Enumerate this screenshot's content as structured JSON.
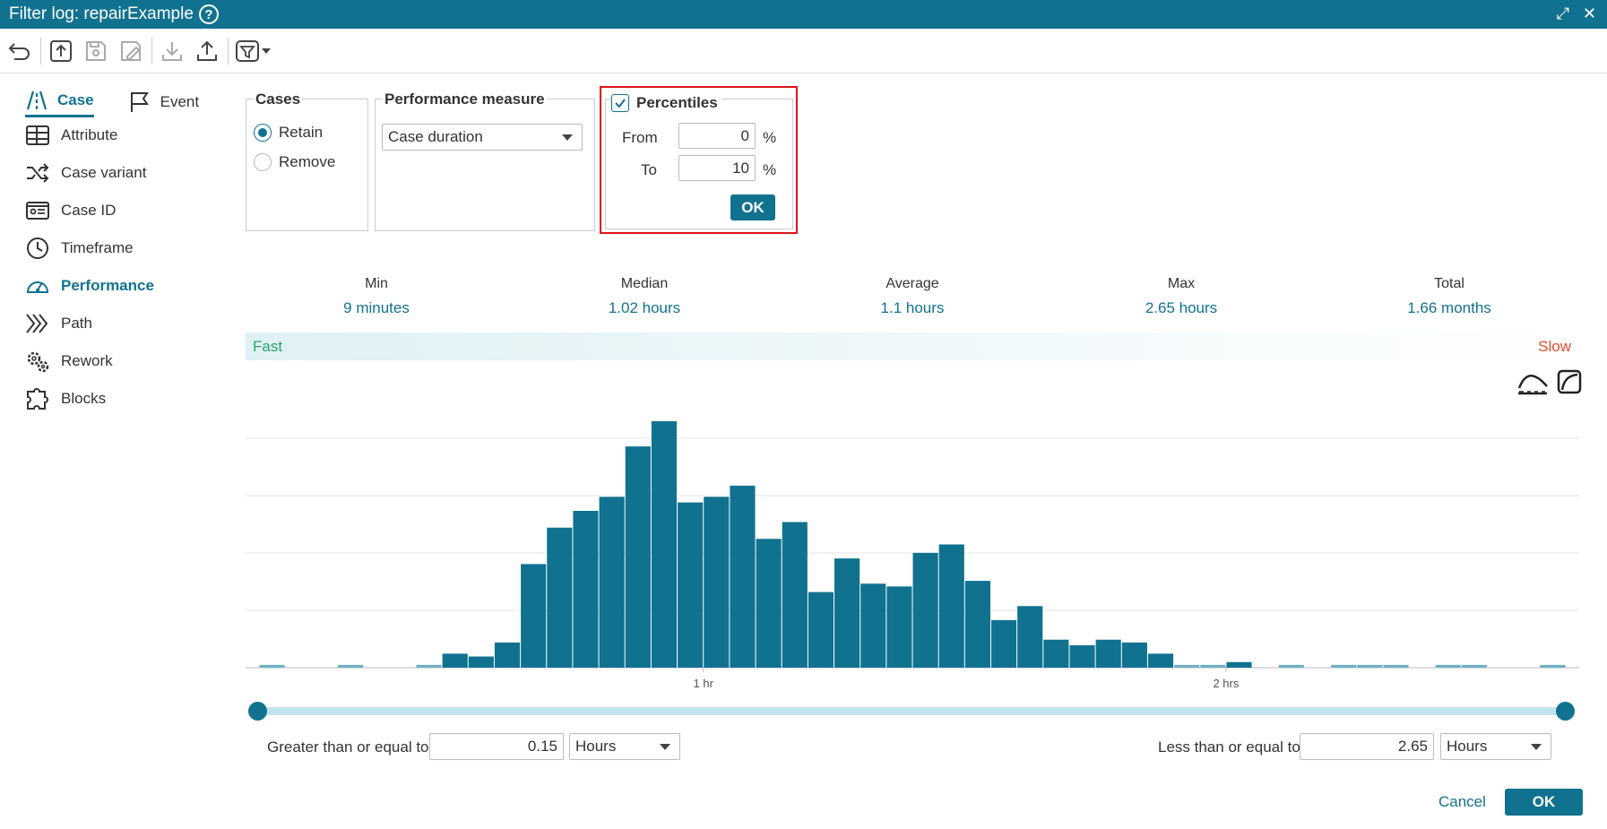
{
  "window": {
    "title": "Filter log: repairExample",
    "help_icon": "question-icon",
    "maximize_icon": "expand-icon",
    "close_icon": "close-icon"
  },
  "toolbar": {
    "icons": [
      "undo-icon",
      "upload-icon",
      "save-icon",
      "save-as-icon",
      "download-icon",
      "export-icon",
      "filter-dropdown-icon"
    ]
  },
  "sidebar": {
    "tabs": [
      {
        "label": "Case",
        "icon": "case-icon",
        "active": true
      },
      {
        "label": "Event",
        "icon": "flag-icon",
        "active": false
      }
    ],
    "items": [
      {
        "label": "Attribute",
        "icon": "table-icon"
      },
      {
        "label": "Case variant",
        "icon": "shuffle-icon"
      },
      {
        "label": "Case ID",
        "icon": "id-card-icon"
      },
      {
        "label": "Timeframe",
        "icon": "clock-icon"
      },
      {
        "label": "Performance",
        "icon": "gauge-icon",
        "active": true
      },
      {
        "label": "Path",
        "icon": "chevrons-icon"
      },
      {
        "label": "Rework",
        "icon": "gears-icon"
      },
      {
        "label": "Blocks",
        "icon": "puzzle-icon"
      }
    ]
  },
  "cases": {
    "legend": "Cases",
    "options": [
      "Retain",
      "Remove"
    ],
    "selected": "Retain"
  },
  "performance_measure": {
    "legend": "Performance measure",
    "value": "Case duration"
  },
  "percentiles": {
    "label": "Percentiles",
    "checked": true,
    "from_label": "From",
    "from_value": "0",
    "to_label": "To",
    "to_value": "10",
    "unit": "%",
    "ok_label": "OK"
  },
  "stats": [
    {
      "label": "Min",
      "value": "9 minutes"
    },
    {
      "label": "Median",
      "value": "1.02 hours"
    },
    {
      "label": "Average",
      "value": "1.1 hours"
    },
    {
      "label": "Max",
      "value": "2.65 hours"
    },
    {
      "label": "Total",
      "value": "1.66 months"
    }
  ],
  "speed": {
    "fast": "Fast",
    "slow": "Slow",
    "fast_color": "#2aa36b",
    "slow_color": "#e24b2b"
  },
  "chart_icons": [
    "curve-area-icon",
    "cumulative-chart-icon"
  ],
  "chart_data": {
    "type": "bar",
    "x_unit": "hours",
    "xlim": [
      0.15,
      2.65
    ],
    "bin_width": 0.05,
    "x": [
      0.175,
      0.225,
      0.275,
      0.325,
      0.375,
      0.425,
      0.475,
      0.525,
      0.575,
      0.625,
      0.675,
      0.725,
      0.775,
      0.825,
      0.875,
      0.925,
      0.975,
      1.025,
      1.075,
      1.125,
      1.175,
      1.225,
      1.275,
      1.325,
      1.375,
      1.425,
      1.475,
      1.525,
      1.575,
      1.625,
      1.675,
      1.725,
      1.775,
      1.825,
      1.875,
      1.925,
      1.975,
      2.025,
      2.075,
      2.125,
      2.175,
      2.225,
      2.275,
      2.325,
      2.375,
      2.425,
      2.475,
      2.525,
      2.575,
      2.625
    ],
    "values": [
      1,
      0,
      0,
      1,
      0,
      0,
      1,
      5,
      4,
      9,
      37,
      50,
      56,
      61,
      79,
      88,
      59,
      61,
      65,
      46,
      52,
      27,
      39,
      30,
      29,
      41,
      44,
      31,
      17,
      22,
      10,
      8,
      10,
      9,
      5,
      1,
      1,
      2,
      0,
      1,
      0,
      1,
      1,
      1,
      0,
      1,
      1,
      0,
      0,
      1
    ],
    "ylim": [
      0,
      88
    ],
    "grid": true,
    "x_ticks": [
      {
        "value": 1,
        "label": "1 hr"
      },
      {
        "value": 2,
        "label": "2 hrs"
      }
    ],
    "bar_color": "#117290"
  },
  "range": {
    "ge_label": "Greater than or equal to",
    "ge_value": "0.15",
    "ge_unit": "Hours",
    "le_label": "Less than or equal to",
    "le_value": "2.65",
    "le_unit": "Hours"
  },
  "footer": {
    "cancel": "Cancel",
    "ok": "OK"
  },
  "colors": {
    "accent": "#117290",
    "highlight_box": "#e0131a"
  }
}
